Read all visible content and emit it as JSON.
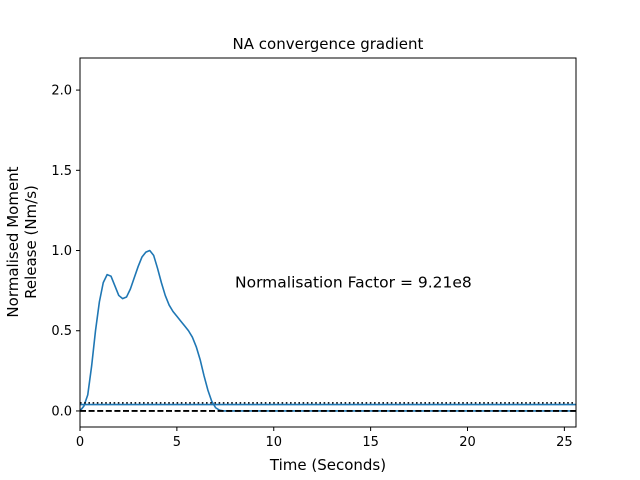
{
  "chart_data": {
    "type": "line",
    "title": "NA convergence gradient",
    "xlabel": "Time (Seconds)",
    "ylabel_lines": [
      "Normalised Moment",
      "Release (Nm/s)"
    ],
    "xlim": [
      0,
      25.6
    ],
    "ylim": [
      -0.1,
      2.2
    ],
    "xticks": [
      0,
      5,
      10,
      15,
      20,
      25
    ],
    "yticks": [
      0.0,
      0.5,
      1.0,
      1.5,
      2.0
    ],
    "xtick_labels": [
      "0",
      "5",
      "10",
      "15",
      "20",
      "25"
    ],
    "ytick_labels": [
      "0.0",
      "0.5",
      "1.0",
      "1.5",
      "2.0"
    ],
    "annotation": {
      "text": "Normalisation Factor = 9.21e8",
      "x": 8.0,
      "y": 0.8
    },
    "grid": false,
    "series": [
      {
        "style": "solid",
        "color": "#1f77b4",
        "x": [
          0.0,
          0.2,
          0.4,
          0.6,
          0.8,
          1.0,
          1.2,
          1.4,
          1.6,
          1.8,
          2.0,
          2.2,
          2.4,
          2.6,
          2.8,
          3.0,
          3.2,
          3.4,
          3.6,
          3.8,
          4.0,
          4.2,
          4.4,
          4.6,
          4.8,
          5.0,
          5.2,
          5.4,
          5.6,
          5.8,
          6.0,
          6.2,
          6.4,
          6.6,
          6.8,
          7.0,
          7.2,
          7.4,
          7.6,
          8.0,
          9.0,
          12.0,
          15.0,
          20.0,
          25.6
        ],
        "y": [
          0.0,
          0.03,
          0.1,
          0.28,
          0.5,
          0.68,
          0.8,
          0.85,
          0.84,
          0.78,
          0.72,
          0.7,
          0.71,
          0.76,
          0.83,
          0.9,
          0.96,
          0.99,
          1.0,
          0.97,
          0.89,
          0.8,
          0.72,
          0.66,
          0.62,
          0.59,
          0.56,
          0.53,
          0.5,
          0.46,
          0.4,
          0.32,
          0.22,
          0.13,
          0.06,
          0.02,
          0.005,
          0.0,
          0.0,
          0.0,
          0.0,
          0.0,
          0.0,
          0.0,
          0.0
        ]
      },
      {
        "style": "dotted",
        "color": "#000000",
        "x": [
          0,
          25.6
        ],
        "y": [
          0.05,
          0.05
        ]
      },
      {
        "style": "solid",
        "color": "#1f77b4",
        "x": [
          0,
          25.6
        ],
        "y": [
          0.04,
          0.04
        ]
      },
      {
        "style": "dashed",
        "color": "#000000",
        "x": [
          0,
          25.6
        ],
        "y": [
          0.0,
          0.0
        ]
      }
    ]
  }
}
